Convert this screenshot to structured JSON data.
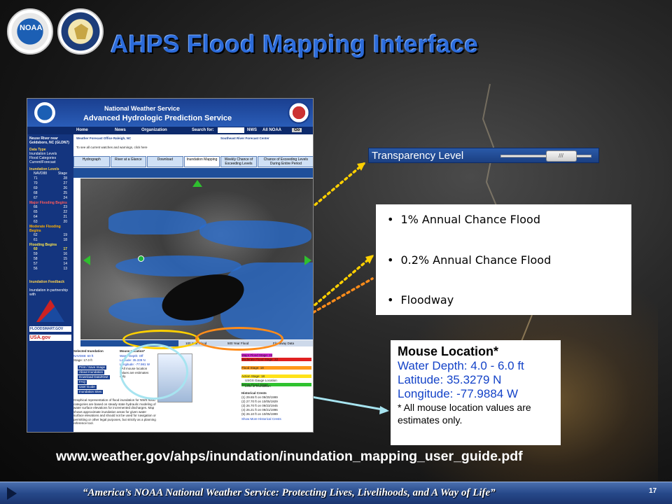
{
  "slide": {
    "title": "AHPS Flood Mapping Interface",
    "url": "www.weather.gov/ahps/inundation/inundation_mapping_user_guide.pdf",
    "footer_quote": "“America’s NOAA National Weather Service: Protecting Lives, Livelihoods, and A Way of Life”",
    "page_number": "17"
  },
  "logos": {
    "noaa": "NOAA",
    "doc": "DEPARTMENT OF COMMERCE"
  },
  "transparency": {
    "label": "Transparency Level",
    "thumb_glyph": "///",
    "level": 0.75
  },
  "legend_items": [
    "1%  Annual Chance Flood",
    "0.2%  Annual Chance Flood",
    "Floodway"
  ],
  "mouse_location": {
    "heading": "Mouse Location*",
    "water_depth": "Water Depth: 4.0 - 6.0 ft",
    "latitude": "Latitude: 35.3279 N",
    "longitude": "Longitude: -77.9884 W",
    "note_line1": "* All mouse location values are",
    "note_line2": "estimates only."
  },
  "screenshot": {
    "agency": "National Weather Service",
    "service": "Advanced Hydrologic Prediction Service",
    "nav": [
      "Home",
      "News",
      "Organization",
      "Search for:"
    ],
    "nav_radio": [
      "NWS",
      "All NOAA",
      "Go"
    ],
    "site": "Neuse River near Goldsboro, NC (GLDN7)",
    "office": "Weather Forecast Office Raleigh, NC",
    "rfc": "Southeast River Forecast Center",
    "watches": "To see all current watches and warnings, click here",
    "tabs": [
      "Hydrograph",
      "River at a Glance",
      "Download",
      "Inundation Mapping",
      "Weekly Chance of Exceeding Levels",
      "Chance of Exceeding Levels During Entire Period"
    ],
    "side": {
      "data_type": "Data Type",
      "options": [
        "Inundation Levels",
        "Flood Categories",
        "Current/Forecast"
      ],
      "levels_head": "Inundation Levels",
      "cols": [
        "NAVD88",
        "Stage"
      ],
      "rows1": [
        [
          "71",
          "28"
        ],
        [
          "70",
          "27"
        ],
        [
          "69",
          "26"
        ],
        [
          "68",
          "25"
        ],
        [
          "67",
          "24"
        ]
      ],
      "major": "Major Flooding Begins",
      "rows2": [
        [
          "66",
          "23"
        ],
        [
          "65",
          "22"
        ],
        [
          "64",
          "21"
        ],
        [
          "63",
          "20"
        ]
      ],
      "moderate": "Moderate Flooding Begins",
      "rows3": [
        [
          "62",
          "19"
        ],
        [
          "61",
          "18"
        ]
      ],
      "flooding": "Flooding Begins",
      "rows4": [
        [
          "60",
          "17"
        ],
        [
          "59",
          "16"
        ],
        [
          "58",
          "15"
        ],
        [
          "57",
          "14"
        ],
        [
          "56",
          "13"
        ]
      ],
      "feedback": "Inundation Feedback",
      "partner": "Inundation in partnership with"
    },
    "legend_bar": [
      "Transparency Level",
      "100 Year Flood",
      "500 Year Flood",
      "Floodway Data"
    ],
    "selected": "Selected Inundation",
    "selected_vals": [
      "NAVD88: 60 ft",
      "Stage: 17.0 ft"
    ],
    "mouse_small": [
      "Mouse Location*",
      "Water Depth: Off",
      "Latitude: 35.339 N",
      "Longitude: -77.981 W",
      "* All mouse location values are estimates only."
    ],
    "buttons": [
      "Print / Save Image",
      "About Inundation",
      "Download Data/KMZ",
      "FAQ",
      "User Guide",
      "Inundation Sites"
    ],
    "flood_cats": [
      "Major Flood Stage: 24",
      "Moderate Flood Stage: 22",
      "Flood Stage: 18",
      "Action Stage: 18",
      "Below Flood Stage"
    ],
    "gauge": "USGS Gauge Location",
    "study": "Limit of Inundation",
    "historical": "Historical Crests",
    "crests": [
      "(1) 29.65 ft on 09/20/1999",
      "(2) 27.70 ft on 10/05/1929",
      "(3) 26.70 ft on 09/23/1945",
      "(4) 26.21 ft on 09/21/1996",
      "(5) 26.10 ft on 10/05/1999"
    ],
    "more": "Show More Historical Crests",
    "desc": "Graphical representation of flood inundation for NWS flood categories are based on steady state hydraulic modeling of water surface elevations for incremented discharges. Map shows approximate inundation areas for given water surface elevations and should not be used for navigation or permitting or other legal purposes, but strictly as a planning reference tool.",
    "logo_floodsmart": "FLOODSMART.GOV",
    "logo_usa": "USA.gov"
  }
}
